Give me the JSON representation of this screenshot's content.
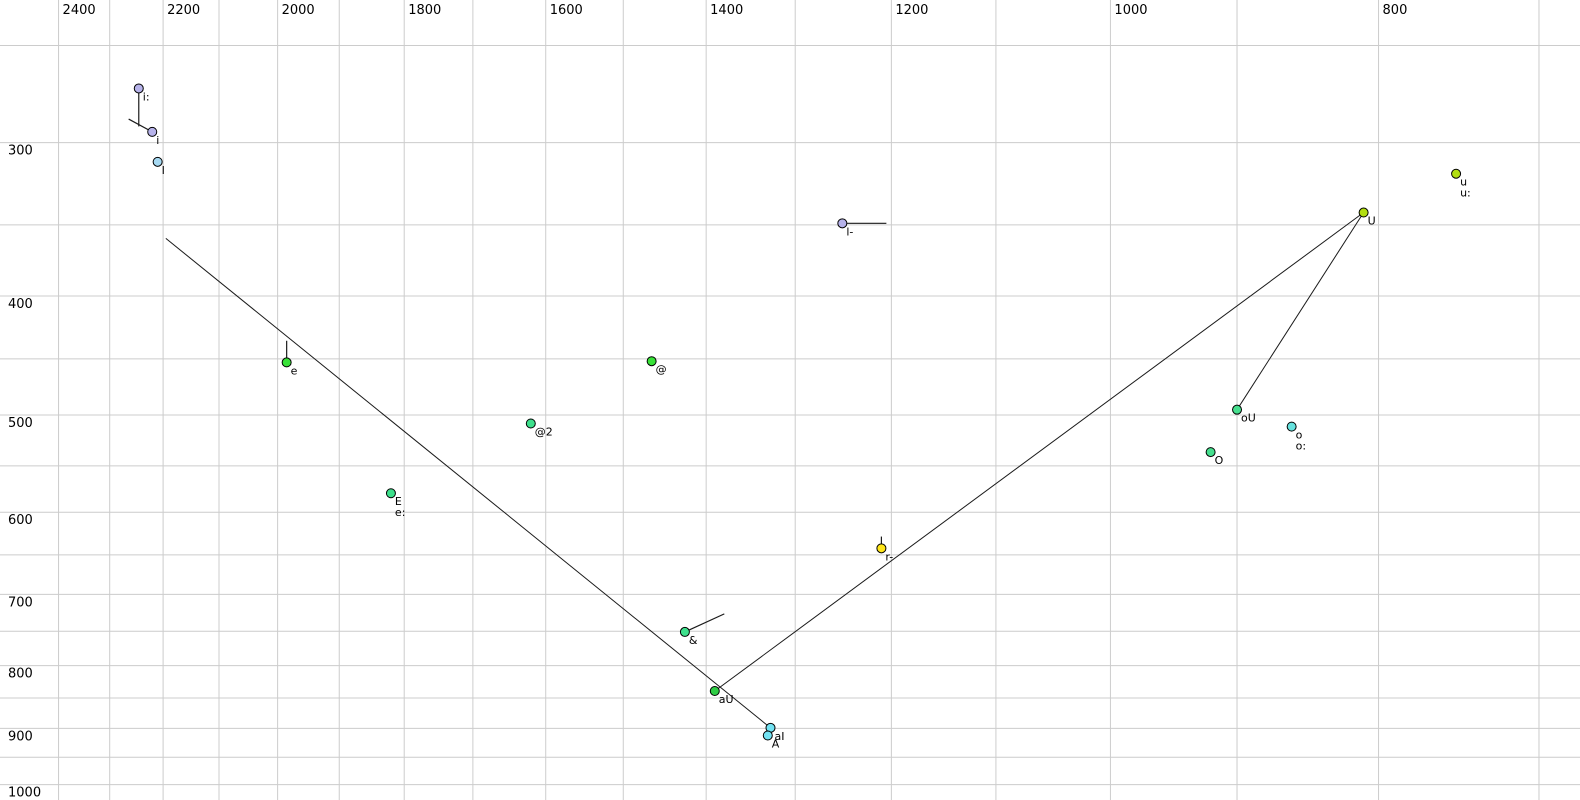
{
  "chart_data": {
    "type": "scatter",
    "title": "",
    "description": "Vowel formant plot: F2 (Hz, log scale, reversed) across top, F1 (Hz, log scale, increasing downward) on left",
    "x_axis": {
      "position": "top",
      "scale": "log",
      "reversed": true,
      "tick_labels": [
        2400,
        2200,
        2000,
        1800,
        1600,
        1400,
        1200,
        1000,
        800
      ],
      "minor_gridline_range": [
        2400,
        700
      ],
      "minor_gridline_step": 100
    },
    "y_axis": {
      "position": "left",
      "scale": "log",
      "increases_downward": true,
      "tick_labels": [
        300,
        400,
        500,
        600,
        700,
        800,
        900,
        1000
      ],
      "minor_gridline_range": [
        250,
        1000
      ],
      "minor_gridline_step": 50
    },
    "grid": {
      "on": true,
      "color": "#cccccc"
    },
    "line_color": "#1a1a1a",
    "points": [
      {
        "labels": [
          "i:"
        ],
        "f2": 2245,
        "f1": 271,
        "color": "#b6b2ea",
        "tail": [
          2245,
          291
        ]
      },
      {
        "labels": [
          "i"
        ],
        "f2": 2220,
        "f1": 294,
        "color": "#b6b2ea",
        "tail": [
          2264,
          287
        ]
      },
      {
        "labels": [
          "I"
        ],
        "f2": 2210,
        "f1": 311,
        "color": "#a6d9f2",
        "tail": null
      },
      {
        "labels": [
          "l-"
        ],
        "f2": 1250,
        "f1": 349,
        "color": "#b6b2ea",
        "tail": [
          1205,
          349
        ]
      },
      {
        "labels": [
          "e"
        ],
        "f2": 1985,
        "f1": 453,
        "color": "#38e238",
        "tail": [
          1985,
          435
        ]
      },
      {
        "labels": [
          "@"
        ],
        "f2": 1465,
        "f1": 452,
        "color": "#38e238",
        "tail": null
      },
      {
        "labels": [
          "@2"
        ],
        "f2": 1620,
        "f1": 508,
        "color": "#3ee08c",
        "tail": null
      },
      {
        "labels": [
          "E",
          "e:"
        ],
        "f2": 1820,
        "f1": 579,
        "color": "#3ee08c",
        "tail": null
      },
      {
        "labels": [
          "&"
        ],
        "f2": 1425,
        "f1": 751,
        "color": "#3ee08c",
        "tail": [
          1379,
          726
        ]
      },
      {
        "labels": [
          "aU"
        ],
        "f2": 1390,
        "f1": 839,
        "color": "#2ecc44",
        "tail": null
      },
      {
        "labels": [
          "aI"
        ],
        "f2": 1327,
        "f1": 899,
        "color": "#72e2f2",
        "tail": null
      },
      {
        "labels": [
          "A"
        ],
        "f2": 1330,
        "f1": 912,
        "color": "#72e2f2",
        "tail": null
      },
      {
        "labels": [
          "r-"
        ],
        "f2": 1210,
        "f1": 642,
        "color": "#ffe61a",
        "tail": [
          1210,
          628
        ]
      },
      {
        "labels": [
          "U"
        ],
        "f2": 810,
        "f1": 342,
        "color": "#b2df10",
        "tail": null
      },
      {
        "labels": [
          "u",
          "u:"
        ],
        "f2": 750,
        "f1": 318,
        "color": "#b2df10",
        "tail": null
      },
      {
        "labels": [
          "oU"
        ],
        "f2": 900,
        "f1": 495,
        "color": "#46df8e",
        "tail": null
      },
      {
        "labels": [
          "O"
        ],
        "f2": 920,
        "f1": 536,
        "color": "#46df8e",
        "tail": null
      },
      {
        "labels": [
          "o",
          "o:"
        ],
        "f2": 860,
        "f1": 511,
        "color": "#66e2de",
        "tail": null
      }
    ],
    "lines": [
      {
        "from": [
          2195,
          359
        ],
        "to": [
          1327,
          899
        ]
      },
      {
        "from": [
          1390,
          839
        ],
        "to": [
          810,
          342
        ]
      },
      {
        "from": [
          810,
          342
        ],
        "to": [
          900,
          495
        ]
      }
    ]
  }
}
